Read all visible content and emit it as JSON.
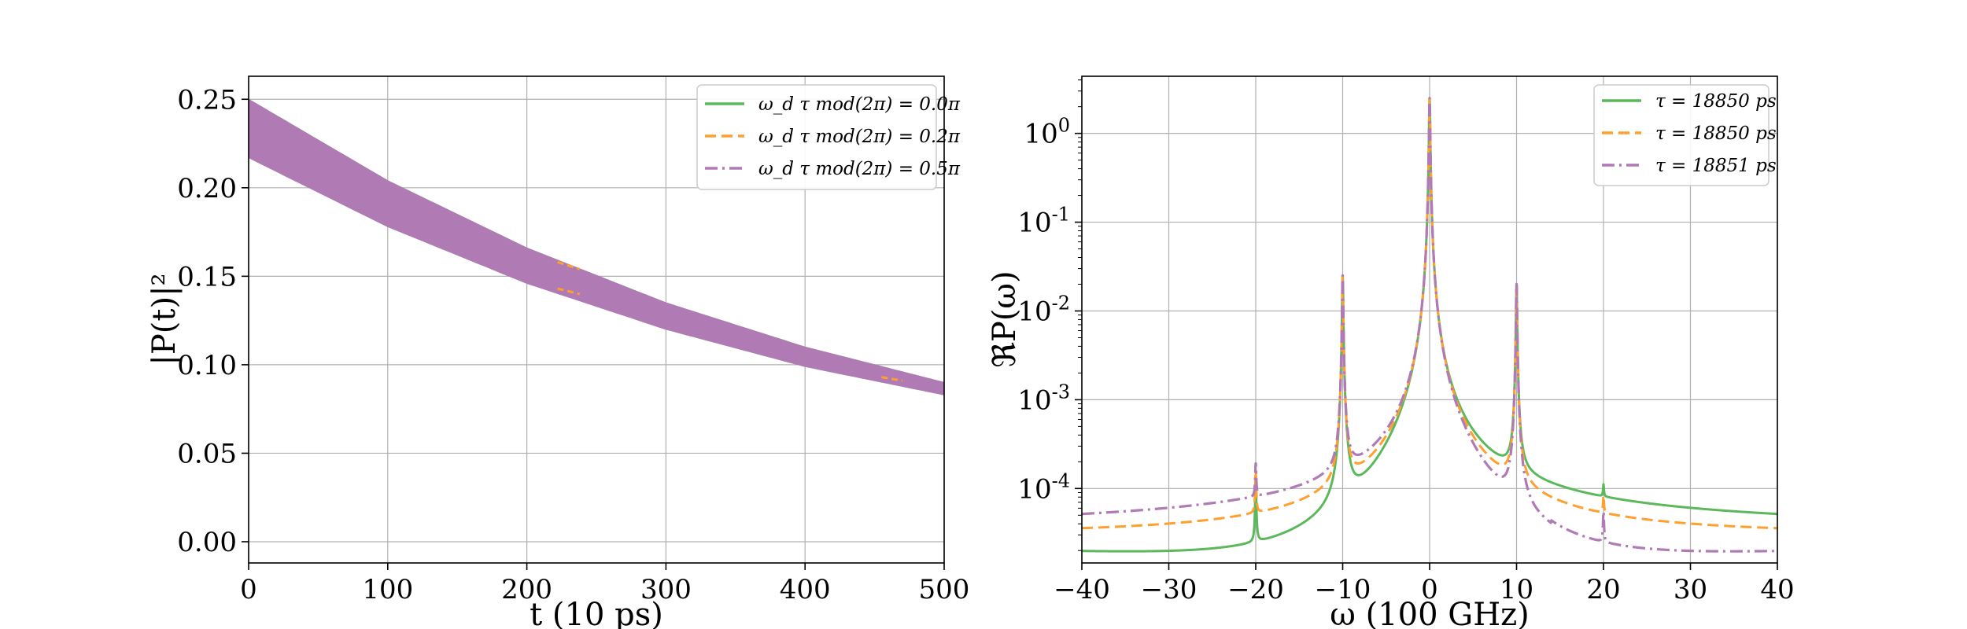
{
  "chart_data": [
    {
      "type": "area",
      "title": "",
      "xlabel": "t (10 ps)",
      "ylabel": "|P(t)|²",
      "xlim": [
        0,
        500
      ],
      "ylim": [
        -0.012,
        0.263
      ],
      "xticks": [
        "0",
        "100",
        "200",
        "300",
        "400",
        "500"
      ],
      "yticks": [
        "0.00",
        "0.05",
        "0.10",
        "0.15",
        "0.20",
        "0.25"
      ],
      "grid": true,
      "legend_position": "top-right",
      "series": [
        {
          "name": "ω_d τ mod(2π) = 0.0π",
          "color": "#5cb85c",
          "dash": "solid",
          "band_upper": {
            "x": [
              0,
              100,
              200,
              300,
              400,
              500
            ],
            "y": [
              0.25,
              0.204,
              0.166,
              0.135,
              0.11,
              0.09
            ]
          },
          "band_lower": {
            "x": [
              0,
              100,
              200,
              300,
              400,
              500
            ],
            "y": [
              0.217,
              0.178,
              0.146,
              0.12,
              0.099,
              0.083
            ]
          }
        },
        {
          "name": "ω_d τ mod(2π) = 0.2π",
          "color": "#ff9f2e",
          "dash": "dashed",
          "visible_segments": [
            {
              "x": [
                222,
                238
              ],
              "y": [
                0.158,
                0.154
              ]
            },
            {
              "x": [
                222,
                238
              ],
              "y": [
                0.143,
                0.14
              ]
            },
            {
              "x": [
                455,
                470
              ],
              "y": [
                0.093,
                0.091
              ]
            }
          ]
        },
        {
          "name": "ω_d τ mod(2π) = 0.5π",
          "color": "#b07ab5",
          "dash": "dashdot",
          "band_upper": {
            "x": [
              0,
              100,
              200,
              300,
              400,
              500
            ],
            "y": [
              0.25,
              0.204,
              0.166,
              0.135,
              0.11,
              0.09
            ]
          },
          "band_lower": {
            "x": [
              0,
              100,
              200,
              300,
              400,
              500
            ],
            "y": [
              0.217,
              0.178,
              0.146,
              0.12,
              0.099,
              0.083
            ]
          }
        }
      ]
    },
    {
      "type": "line",
      "title": "",
      "xlabel": "ω (100 GHz)",
      "ylabel": "ℜP(ω)",
      "xlim": [
        -40,
        40
      ],
      "ylim": [
        1.45e-05,
        4.4
      ],
      "yscale": "log",
      "xticks": [
        "−40",
        "−30",
        "−20",
        "−10",
        "0",
        "10",
        "20",
        "30",
        "40"
      ],
      "ytick_values": [
        1,
        0.1,
        0.01,
        0.001,
        0.0001
      ],
      "yticks": [
        {
          "base": "10",
          "exp": "0"
        },
        {
          "base": "10",
          "exp": "-1"
        },
        {
          "base": "10",
          "exp": "-2"
        },
        {
          "base": "10",
          "exp": "-3"
        },
        {
          "base": "10",
          "exp": "-4"
        }
      ],
      "grid": true,
      "legend_position": "top-right",
      "baseline": 3e-05,
      "peaks": [
        {
          "x": -20,
          "y": 0.00014
        },
        {
          "x": -10,
          "y": 0.025
        },
        {
          "x": 0,
          "y": 2.5
        },
        {
          "x": 10,
          "y": 0.02
        },
        {
          "x": 20,
          "y": 6e-05
        }
      ],
      "series": [
        {
          "name": "τ = 18850 ps",
          "color": "#5cb85c",
          "dash": "solid",
          "asymmetry": "dispersive"
        },
        {
          "name": "τ = 18850 ps",
          "color": "#ff9f2e",
          "dash": "dashed",
          "asymmetry": "symmetric"
        },
        {
          "name": "τ = 18851 ps",
          "color": "#b07ab5",
          "dash": "dashdot",
          "asymmetry": "dispersive-inverse"
        }
      ]
    }
  ]
}
